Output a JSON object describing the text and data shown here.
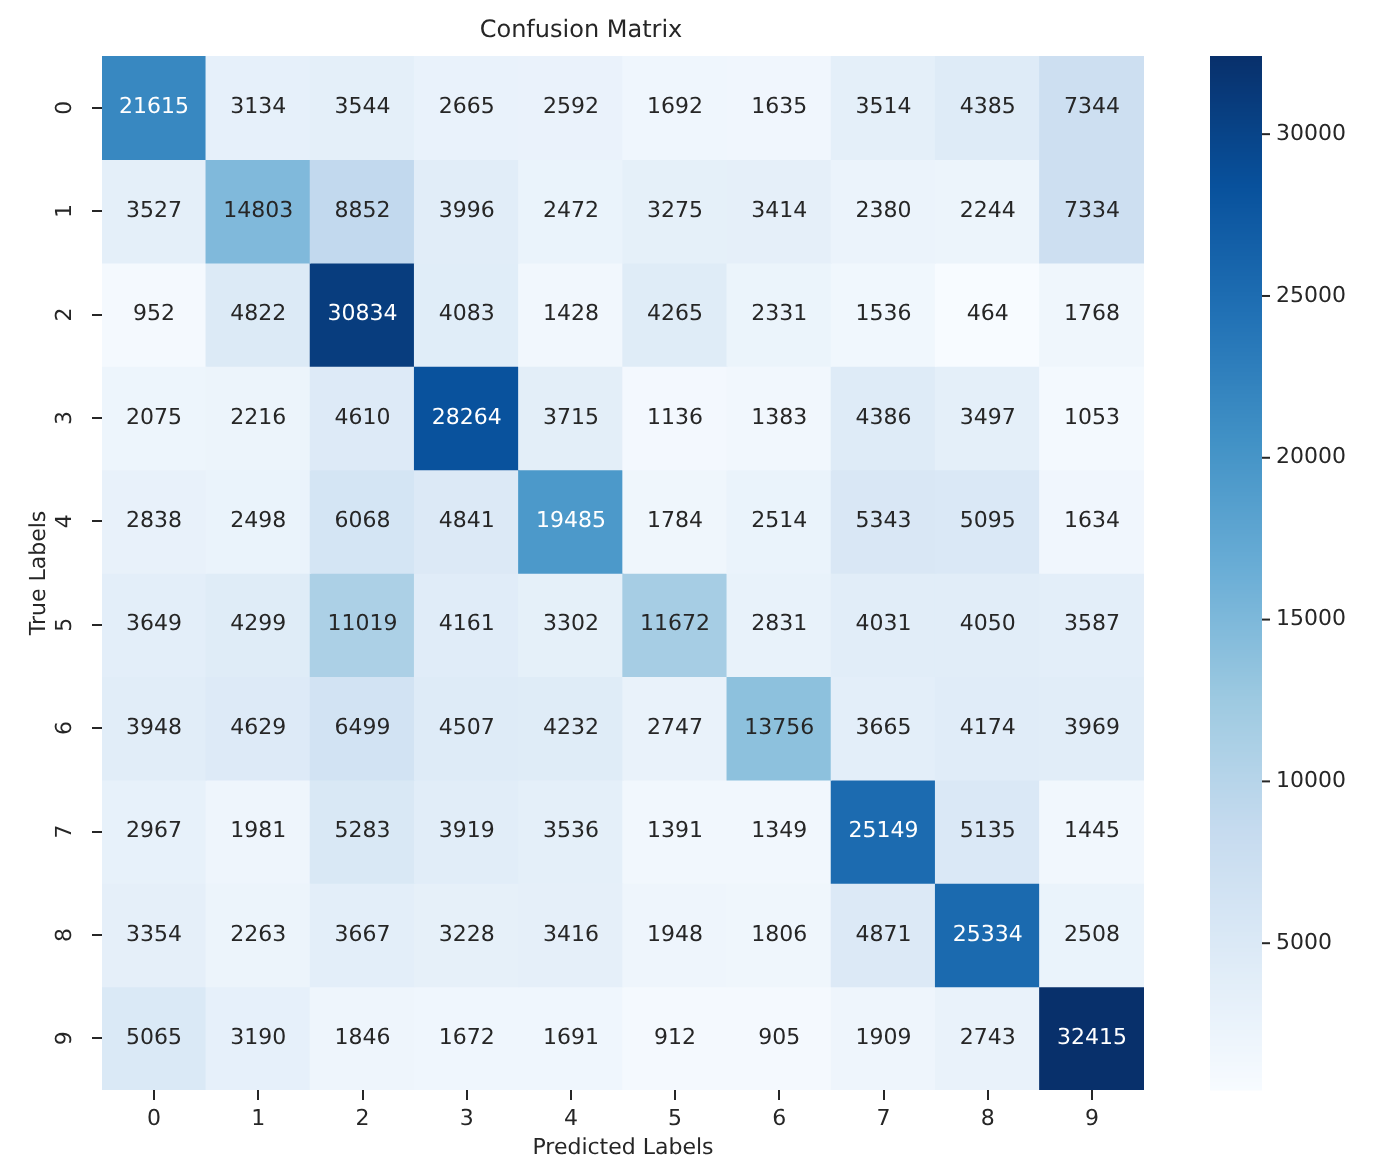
{
  "chart_data": {
    "type": "heatmap",
    "title": "Confusion Matrix",
    "xlabel": "Predicted Labels",
    "ylabel": "True Labels",
    "categories": [
      "0",
      "1",
      "2",
      "3",
      "4",
      "5",
      "6",
      "7",
      "8",
      "9"
    ],
    "y_categories": [
      "0",
      "1",
      "2",
      "3",
      "4",
      "5",
      "6",
      "7",
      "8",
      "9"
    ],
    "cells": [
      [
        21615,
        3134,
        3544,
        2665,
        2592,
        1692,
        1635,
        3514,
        4385,
        7344
      ],
      [
        3527,
        14803,
        8852,
        3996,
        2472,
        3275,
        3414,
        2380,
        2244,
        7334
      ],
      [
        952,
        4822,
        30834,
        4083,
        1428,
        4265,
        2331,
        1536,
        464,
        1768
      ],
      [
        2075,
        2216,
        4610,
        28264,
        3715,
        1136,
        1383,
        4386,
        3497,
        1053
      ],
      [
        2838,
        2498,
        6068,
        4841,
        19485,
        1784,
        2514,
        5343,
        5095,
        1634
      ],
      [
        3649,
        4299,
        11019,
        4161,
        3302,
        11672,
        2831,
        4031,
        4050,
        3587
      ],
      [
        3948,
        4629,
        6499,
        4507,
        4232,
        2747,
        13756,
        3665,
        4174,
        3969
      ],
      [
        2967,
        1981,
        5283,
        3919,
        3536,
        1391,
        1349,
        25149,
        5135,
        1445
      ],
      [
        3354,
        2263,
        3667,
        3228,
        3416,
        1948,
        1806,
        4871,
        25334,
        2508
      ],
      [
        5065,
        3190,
        1846,
        1672,
        1691,
        912,
        905,
        1909,
        2743,
        32415
      ]
    ],
    "clim": [
      464,
      32415
    ],
    "cticks": [
      5000,
      10000,
      15000,
      20000,
      25000,
      30000
    ],
    "data_labels": true
  }
}
